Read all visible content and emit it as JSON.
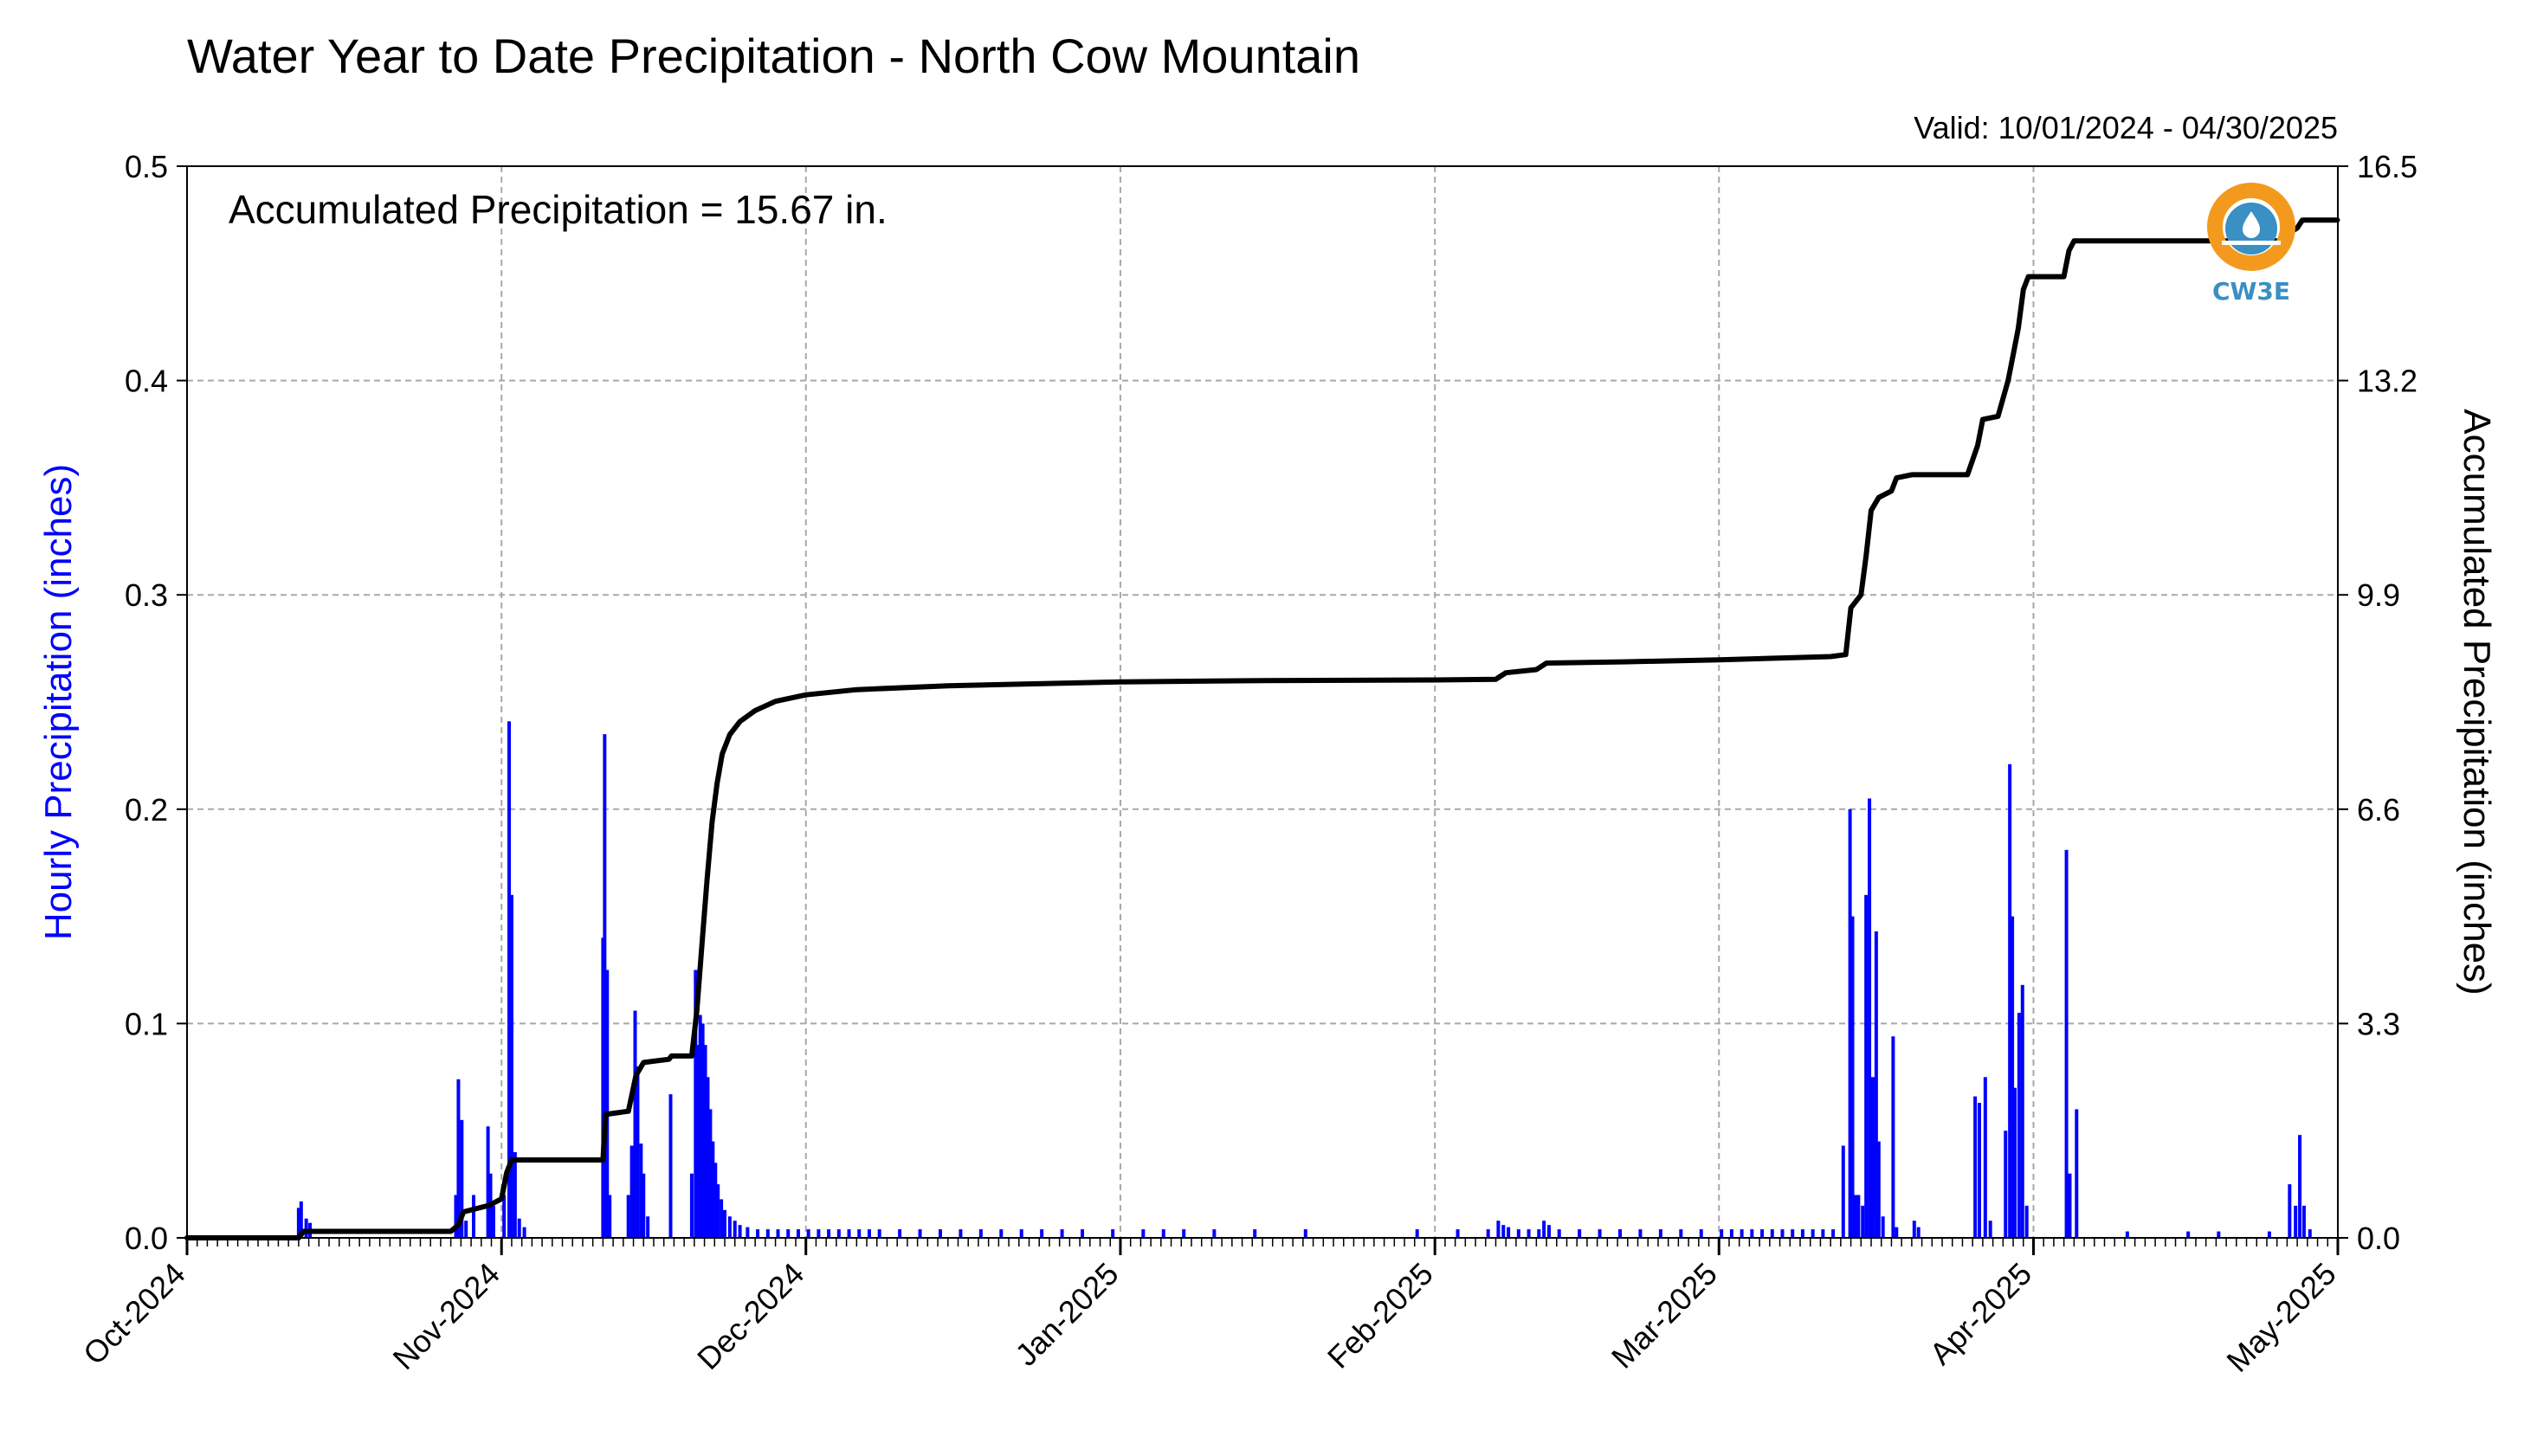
{
  "chart_data": {
    "type": "bar+line",
    "title": "Water Year to Date Precipitation - North Cow Mountain",
    "subtitle": "Valid: 10/01/2024 - 04/30/2025",
    "annotation": "Accumulated Precipitation = 15.67 in.",
    "logo_text": "CW3E",
    "ylabel_left": "Hourly Precipitation (inches)",
    "ylabel_right": "Accumulated Precipitation (inches)",
    "xlim": [
      "2024-10-01",
      "2025-05-01"
    ],
    "ylim_left": [
      0,
      0.5
    ],
    "ylim_right": [
      0,
      16.5
    ],
    "yticks_left": [
      "0.0",
      "0.1",
      "0.2",
      "0.3",
      "0.4",
      "0.5"
    ],
    "yticks_right": [
      "0.0",
      "3.3",
      "6.6",
      "9.9",
      "13.2",
      "16.5"
    ],
    "xticks": [
      {
        "date": "2024-10-01",
        "label": "Oct-2024"
      },
      {
        "date": "2024-11-01",
        "label": "Nov-2024"
      },
      {
        "date": "2024-12-01",
        "label": "Dec-2024"
      },
      {
        "date": "2025-01-01",
        "label": "Jan-2025"
      },
      {
        "date": "2025-02-01",
        "label": "Feb-2025"
      },
      {
        "date": "2025-03-01",
        "label": "Mar-2025"
      },
      {
        "date": "2025-04-01",
        "label": "Apr-2025"
      },
      {
        "date": "2025-05-01",
        "label": "May-2025"
      }
    ],
    "grid": true,
    "colors": {
      "bars": "#0000ff",
      "accumulated_line": "#000000",
      "left_axis_label": "#0000ff",
      "logo": "#3a8fc3",
      "logo_ring": "#f39a1e"
    },
    "series": [
      {
        "type": "bar",
        "axis": "left",
        "points": [
          [
            "2024-10-12T00:00",
            0.014
          ],
          [
            "2024-10-12T06:00",
            0.017
          ],
          [
            "2024-10-12T18:00",
            0.009
          ],
          [
            "2024-10-13T03:00",
            0.007
          ],
          [
            "2024-10-27T12:00",
            0.02
          ],
          [
            "2024-10-27T18:00",
            0.074
          ],
          [
            "2024-10-28T02:00",
            0.055
          ],
          [
            "2024-10-28T12:00",
            0.008
          ],
          [
            "2024-10-29T06:00",
            0.02
          ],
          [
            "2024-10-30T16:00",
            0.052
          ],
          [
            "2024-10-30T22:00",
            0.03
          ],
          [
            "2024-10-31T05:00",
            0.015
          ],
          [
            "2024-11-01T06:00",
            0.02
          ],
          [
            "2024-11-01T18:00",
            0.241
          ],
          [
            "2024-11-02T00:00",
            0.16
          ],
          [
            "2024-11-02T08:00",
            0.04
          ],
          [
            "2024-11-02T18:00",
            0.009
          ],
          [
            "2024-11-03T06:00",
            0.005
          ],
          [
            "2024-11-11T00:00",
            0.14
          ],
          [
            "2024-11-11T04:00",
            0.235
          ],
          [
            "2024-11-11T10:00",
            0.125
          ],
          [
            "2024-11-11T16:00",
            0.02
          ],
          [
            "2024-11-13T12:00",
            0.02
          ],
          [
            "2024-11-13T20:00",
            0.043
          ],
          [
            "2024-11-14T04:00",
            0.106
          ],
          [
            "2024-11-14T10:00",
            0.08
          ],
          [
            "2024-11-14T18:00",
            0.044
          ],
          [
            "2024-11-15T00:00",
            0.03
          ],
          [
            "2024-11-15T10:00",
            0.01
          ],
          [
            "2024-11-17T16:00",
            0.067
          ],
          [
            "2024-11-19T18:00",
            0.03
          ],
          [
            "2024-11-20T03:00",
            0.125
          ],
          [
            "2024-11-20T08:00",
            0.09
          ],
          [
            "2024-11-20T14:00",
            0.104
          ],
          [
            "2024-11-20T20:00",
            0.1
          ],
          [
            "2024-11-21T02:00",
            0.09
          ],
          [
            "2024-11-21T08:00",
            0.075
          ],
          [
            "2024-11-21T14:00",
            0.06
          ],
          [
            "2024-11-21T20:00",
            0.045
          ],
          [
            "2024-11-22T02:00",
            0.035
          ],
          [
            "2024-11-22T08:00",
            0.025
          ],
          [
            "2024-11-22T16:00",
            0.018
          ],
          [
            "2024-11-23T00:00",
            0.013
          ],
          [
            "2024-11-23T12:00",
            0.01
          ],
          [
            "2024-11-24T00:00",
            0.008
          ],
          [
            "2024-11-24T12:00",
            0.006
          ],
          [
            "2024-11-25T06:00",
            0.005
          ],
          [
            "2024-11-26T06:00",
            0.004
          ],
          [
            "2024-11-27T06:00",
            0.004
          ],
          [
            "2024-11-28T06:00",
            0.004
          ],
          [
            "2024-11-29T06:00",
            0.004
          ],
          [
            "2024-11-30T06:00",
            0.004
          ],
          [
            "2024-12-01T06:00",
            0.004
          ],
          [
            "2024-12-02T06:00",
            0.004
          ],
          [
            "2024-12-03T06:00",
            0.004
          ],
          [
            "2024-12-04T06:00",
            0.004
          ],
          [
            "2024-12-05T06:00",
            0.004
          ],
          [
            "2024-12-06T06:00",
            0.004
          ],
          [
            "2024-12-07T06:00",
            0.004
          ],
          [
            "2024-12-08T06:00",
            0.004
          ],
          [
            "2024-12-10T06:00",
            0.004
          ],
          [
            "2024-12-12T06:00",
            0.004
          ],
          [
            "2024-12-14T06:00",
            0.004
          ],
          [
            "2024-12-16T06:00",
            0.004
          ],
          [
            "2024-12-18T06:00",
            0.004
          ],
          [
            "2024-12-20T06:00",
            0.004
          ],
          [
            "2024-12-22T06:00",
            0.004
          ],
          [
            "2024-12-24T06:00",
            0.004
          ],
          [
            "2024-12-26T06:00",
            0.004
          ],
          [
            "2024-12-28T06:00",
            0.004
          ],
          [
            "2024-12-31T06:00",
            0.004
          ],
          [
            "2025-01-03T06:00",
            0.004
          ],
          [
            "2025-01-05T06:00",
            0.004
          ],
          [
            "2025-01-07T06:00",
            0.004
          ],
          [
            "2025-01-10T06:00",
            0.004
          ],
          [
            "2025-01-14T06:00",
            0.004
          ],
          [
            "2025-01-19T06:00",
            0.004
          ],
          [
            "2025-01-30T06:00",
            0.004
          ],
          [
            "2025-02-03T06:00",
            0.004
          ],
          [
            "2025-02-06T06:00",
            0.004
          ],
          [
            "2025-02-07T06:00",
            0.008
          ],
          [
            "2025-02-07T18:00",
            0.006
          ],
          [
            "2025-02-08T06:00",
            0.005
          ],
          [
            "2025-02-09T06:00",
            0.004
          ],
          [
            "2025-02-10T06:00",
            0.004
          ],
          [
            "2025-02-11T06:00",
            0.004
          ],
          [
            "2025-02-11T18:00",
            0.008
          ],
          [
            "2025-02-12T06:00",
            0.006
          ],
          [
            "2025-02-13T06:00",
            0.004
          ],
          [
            "2025-02-15T06:00",
            0.004
          ],
          [
            "2025-02-17T06:00",
            0.004
          ],
          [
            "2025-02-19T06:00",
            0.004
          ],
          [
            "2025-02-21T06:00",
            0.004
          ],
          [
            "2025-02-23T06:00",
            0.004
          ],
          [
            "2025-02-25T06:00",
            0.004
          ],
          [
            "2025-02-27T06:00",
            0.004
          ],
          [
            "2025-03-01T06:00",
            0.004
          ],
          [
            "2025-03-02T06:00",
            0.004
          ],
          [
            "2025-03-03T06:00",
            0.004
          ],
          [
            "2025-03-04T06:00",
            0.004
          ],
          [
            "2025-03-05T06:00",
            0.004
          ],
          [
            "2025-03-06T06:00",
            0.004
          ],
          [
            "2025-03-07T06:00",
            0.004
          ],
          [
            "2025-03-08T06:00",
            0.004
          ],
          [
            "2025-03-09T06:00",
            0.004
          ],
          [
            "2025-03-10T06:00",
            0.004
          ],
          [
            "2025-03-11T06:00",
            0.004
          ],
          [
            "2025-03-12T06:00",
            0.004
          ],
          [
            "2025-03-13T06:00",
            0.043
          ],
          [
            "2025-03-13T22:00",
            0.2
          ],
          [
            "2025-03-14T04:00",
            0.15
          ],
          [
            "2025-03-14T10:00",
            0.02
          ],
          [
            "2025-03-14T18:00",
            0.02
          ],
          [
            "2025-03-15T04:00",
            0.015
          ],
          [
            "2025-03-15T12:00",
            0.16
          ],
          [
            "2025-03-15T20:00",
            0.205
          ],
          [
            "2025-03-16T04:00",
            0.075
          ],
          [
            "2025-03-16T12:00",
            0.143
          ],
          [
            "2025-03-16T18:00",
            0.045
          ],
          [
            "2025-03-17T04:00",
            0.01
          ],
          [
            "2025-03-18T04:00",
            0.094
          ],
          [
            "2025-03-18T12:00",
            0.005
          ],
          [
            "2025-03-20T06:00",
            0.008
          ],
          [
            "2025-03-20T16:00",
            0.005
          ],
          [
            "2025-03-26T06:00",
            0.066
          ],
          [
            "2025-03-26T16:00",
            0.063
          ],
          [
            "2025-03-27T06:00",
            0.075
          ],
          [
            "2025-03-27T18:00",
            0.008
          ],
          [
            "2025-03-29T06:00",
            0.05
          ],
          [
            "2025-03-29T16:00",
            0.221
          ],
          [
            "2025-03-29T22:00",
            0.15
          ],
          [
            "2025-03-30T04:00",
            0.07
          ],
          [
            "2025-03-30T14:00",
            0.105
          ],
          [
            "2025-03-30T22:00",
            0.118
          ],
          [
            "2025-03-31T08:00",
            0.015
          ],
          [
            "2025-04-04T06:00",
            0.181
          ],
          [
            "2025-04-04T14:00",
            0.03
          ],
          [
            "2025-04-05T06:00",
            0.06
          ],
          [
            "2025-04-10T06:00",
            0.003
          ],
          [
            "2025-04-16T06:00",
            0.003
          ],
          [
            "2025-04-19T06:00",
            0.003
          ],
          [
            "2025-04-24T06:00",
            0.003
          ],
          [
            "2025-04-26T06:00",
            0.025
          ],
          [
            "2025-04-26T20:00",
            0.015
          ],
          [
            "2025-04-27T06:00",
            0.048
          ],
          [
            "2025-04-27T16:00",
            0.015
          ],
          [
            "2025-04-28T06:00",
            0.004
          ]
        ]
      },
      {
        "type": "line",
        "axis": "right",
        "name": "Accumulated Precipitation",
        "points": [
          [
            "2024-10-01T00:00",
            0.0
          ],
          [
            "2024-10-12T00:00",
            0.0
          ],
          [
            "2024-10-12T12:00",
            0.1
          ],
          [
            "2024-10-27T00:00",
            0.1
          ],
          [
            "2024-10-27T18:00",
            0.2
          ],
          [
            "2024-10-28T06:00",
            0.4
          ],
          [
            "2024-10-30T18:00",
            0.5
          ],
          [
            "2024-11-01T00:00",
            0.6
          ],
          [
            "2024-11-01T12:00",
            1.0
          ],
          [
            "2024-11-02T00:00",
            1.2
          ],
          [
            "2024-11-11T00:00",
            1.2
          ],
          [
            "2024-11-11T06:00",
            1.9
          ],
          [
            "2024-11-13T12:00",
            1.95
          ],
          [
            "2024-11-14T06:00",
            2.5
          ],
          [
            "2024-11-15T00:00",
            2.7
          ],
          [
            "2024-11-17T12:00",
            2.75
          ],
          [
            "2024-11-17T18:00",
            2.8
          ],
          [
            "2024-11-19T18:00",
            2.8
          ],
          [
            "2024-11-20T06:00",
            3.5
          ],
          [
            "2024-11-20T18:00",
            4.5
          ],
          [
            "2024-11-21T06:00",
            5.5
          ],
          [
            "2024-11-21T18:00",
            6.4
          ],
          [
            "2024-11-22T06:00",
            7.0
          ],
          [
            "2024-11-22T18:00",
            7.45
          ],
          [
            "2024-11-23T12:00",
            7.75
          ],
          [
            "2024-11-24T12:00",
            7.95
          ],
          [
            "2024-11-26T00:00",
            8.12
          ],
          [
            "2024-11-28T00:00",
            8.26
          ],
          [
            "2024-12-01T00:00",
            8.36
          ],
          [
            "2024-12-06T00:00",
            8.44
          ],
          [
            "2024-12-15T00:00",
            8.5
          ],
          [
            "2025-01-01T00:00",
            8.56
          ],
          [
            "2025-01-15T00:00",
            8.58
          ],
          [
            "2025-02-01T00:00",
            8.59
          ],
          [
            "2025-02-07T00:00",
            8.6
          ],
          [
            "2025-02-08T00:00",
            8.7
          ],
          [
            "2025-02-11T00:00",
            8.75
          ],
          [
            "2025-02-12T00:00",
            8.85
          ],
          [
            "2025-02-20T00:00",
            8.87
          ],
          [
            "2025-03-01T00:00",
            8.9
          ],
          [
            "2025-03-12T00:00",
            8.95
          ],
          [
            "2025-03-13T12:00",
            8.98
          ],
          [
            "2025-03-14T00:00",
            9.7
          ],
          [
            "2025-03-15T00:00",
            9.9
          ],
          [
            "2025-03-15T12:00",
            10.5
          ],
          [
            "2025-03-16T00:00",
            11.2
          ],
          [
            "2025-03-16T18:00",
            11.4
          ],
          [
            "2025-03-18T00:00",
            11.5
          ],
          [
            "2025-03-18T12:00",
            11.7
          ],
          [
            "2025-03-20T00:00",
            11.75
          ],
          [
            "2025-03-25T12:00",
            11.75
          ],
          [
            "2025-03-26T12:00",
            12.2
          ],
          [
            "2025-03-27T00:00",
            12.6
          ],
          [
            "2025-03-28T12:00",
            12.65
          ],
          [
            "2025-03-29T12:00",
            13.2
          ],
          [
            "2025-03-30T00:00",
            13.6
          ],
          [
            "2025-03-30T12:00",
            14.0
          ],
          [
            "2025-03-31T00:00",
            14.6
          ],
          [
            "2025-03-31T12:00",
            14.8
          ],
          [
            "2025-04-04T00:00",
            14.8
          ],
          [
            "2025-04-04T12:00",
            15.2
          ],
          [
            "2025-04-05T00:00",
            15.35
          ],
          [
            "2025-04-26T00:00",
            15.35
          ],
          [
            "2025-04-26T12:00",
            15.5
          ],
          [
            "2025-04-27T00:00",
            15.55
          ],
          [
            "2025-04-27T12:00",
            15.67
          ],
          [
            "2025-04-30T23:00",
            15.67
          ]
        ]
      }
    ]
  }
}
